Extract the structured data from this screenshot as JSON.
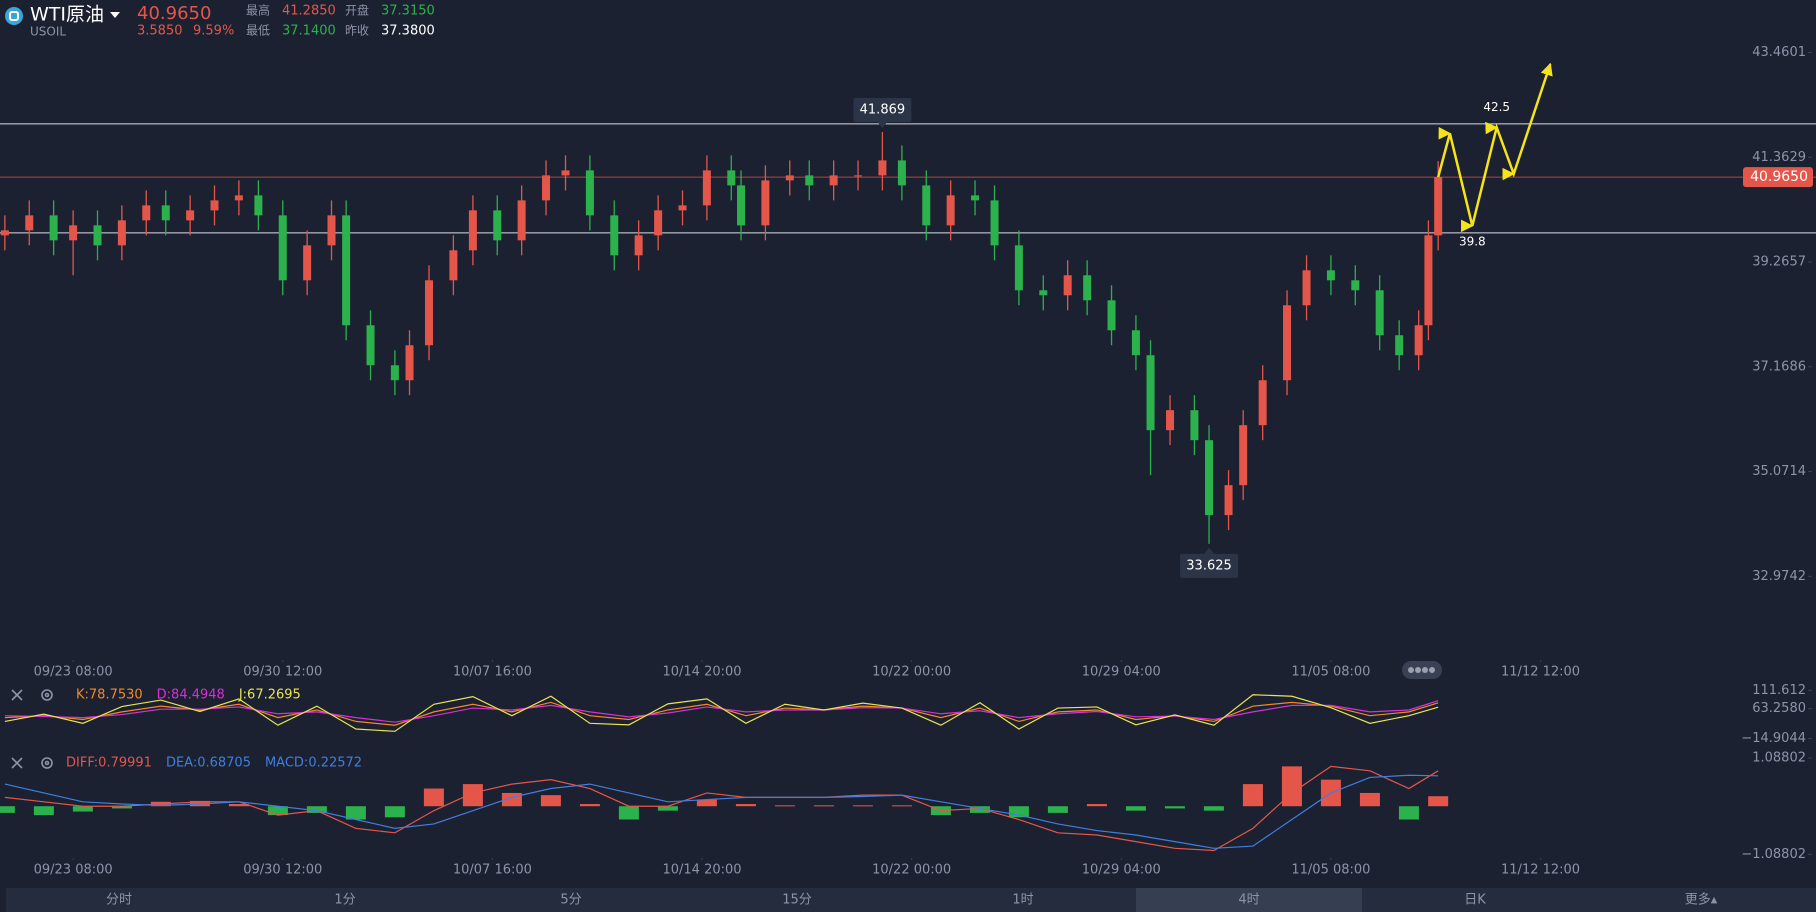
{
  "header": {
    "name": "WTI原油",
    "symbol": "USOIL",
    "price": "40.9650",
    "change": "3.5850",
    "change_pct": "9.59%",
    "high_label": "最高",
    "high": "41.2850",
    "open_label": "开盘",
    "open": "37.3150",
    "low_label": "最低",
    "low": "37.1400",
    "prev_label": "昨收",
    "prev": "37.3800"
  },
  "tabs": [
    "分时",
    "1分",
    "5分",
    "15分",
    "1时",
    "4时",
    "日K",
    "更多▴"
  ],
  "active_tab": 5,
  "chart_data": [
    {
      "type": "candlestick",
      "colors": {
        "up": "#e5564a",
        "down": "#2bb24c"
      },
      "xlim": [
        -15,
        357.5
      ],
      "ylim": [
        31.42,
        43.81
      ],
      "xticks": [
        {
          "value": 0,
          "label": "09/23 08:00"
        },
        {
          "value": 43,
          "label": "09/30 12:00"
        },
        {
          "value": 86,
          "label": "10/07 16:00"
        },
        {
          "value": 129,
          "label": "10/14 20:00"
        },
        {
          "value": 172,
          "label": "10/22 00:00"
        },
        {
          "value": 215,
          "label": "10/29 04:00"
        },
        {
          "value": 258,
          "label": "11/05 08:00"
        },
        {
          "value": 301,
          "label": "11/12 12:00"
        }
      ],
      "yticks": [
        43.4601,
        41.3629,
        39.2657,
        37.1686,
        35.0714,
        32.9742
      ],
      "x": [
        -14,
        -9,
        -4,
        0,
        5,
        10,
        15,
        19,
        24,
        29,
        34,
        38,
        43,
        48,
        53,
        56,
        61,
        66,
        69,
        73,
        78,
        82,
        87,
        92,
        97,
        101,
        106,
        111,
        116,
        120,
        125,
        130,
        135,
        137,
        142,
        147,
        151,
        156,
        161,
        166,
        170,
        175,
        180,
        185,
        189,
        194,
        199,
        204,
        208,
        213,
        218,
        221,
        225,
        230,
        233,
        237,
        240,
        244,
        249,
        253,
        258,
        263,
        268,
        272,
        276,
        278,
        280
      ],
      "open": [
        39.8,
        39.9,
        40.2,
        39.7,
        40.0,
        39.6,
        40.1,
        40.4,
        40.1,
        40.3,
        40.5,
        40.6,
        40.2,
        38.9,
        39.6,
        40.2,
        38.0,
        37.2,
        36.9,
        37.6,
        38.9,
        39.5,
        40.3,
        39.7,
        40.5,
        41.0,
        41.1,
        40.2,
        39.4,
        39.8,
        40.3,
        40.4,
        41.1,
        40.8,
        40.0,
        40.9,
        41.0,
        40.8,
        41.0,
        41.0,
        41.3,
        40.8,
        40.0,
        40.6,
        40.5,
        39.6,
        38.7,
        38.6,
        39.0,
        38.5,
        37.9,
        37.4,
        35.9,
        36.3,
        35.7,
        34.2,
        34.8,
        36.0,
        36.9,
        38.4,
        39.1,
        38.9,
        38.7,
        37.8,
        37.4,
        38.0,
        39.8
      ],
      "high": [
        40.2,
        40.5,
        40.5,
        40.3,
        40.3,
        40.4,
        40.7,
        40.7,
        40.6,
        40.8,
        40.9,
        40.9,
        40.5,
        39.9,
        40.5,
        40.5,
        38.3,
        37.5,
        37.9,
        39.2,
        39.8,
        40.6,
        40.6,
        40.8,
        41.3,
        41.4,
        41.4,
        40.5,
        40.1,
        40.6,
        40.7,
        41.4,
        41.4,
        41.1,
        41.2,
        41.3,
        41.3,
        41.3,
        41.3,
        41.869,
        41.6,
        41.1,
        40.9,
        40.9,
        40.8,
        39.9,
        39.0,
        39.3,
        39.3,
        38.8,
        38.2,
        37.7,
        36.6,
        36.6,
        36.0,
        35.1,
        36.3,
        37.2,
        38.7,
        39.4,
        39.4,
        39.2,
        39.0,
        38.1,
        38.3,
        40.1,
        41.285
      ],
      "low": [
        39.5,
        39.6,
        39.4,
        39.0,
        39.3,
        39.3,
        39.8,
        39.8,
        39.8,
        40.0,
        40.2,
        39.9,
        38.6,
        38.6,
        39.3,
        37.7,
        36.9,
        36.6,
        36.6,
        37.3,
        38.6,
        39.2,
        39.4,
        39.4,
        40.2,
        40.7,
        39.9,
        39.1,
        39.1,
        39.5,
        40.0,
        40.1,
        40.5,
        39.7,
        39.7,
        40.6,
        40.5,
        40.5,
        40.7,
        40.7,
        40.5,
        39.7,
        39.7,
        40.2,
        39.3,
        38.4,
        38.3,
        38.3,
        38.2,
        37.6,
        37.1,
        35.0,
        35.6,
        35.4,
        33.625,
        33.9,
        34.5,
        35.7,
        36.6,
        38.1,
        38.6,
        38.4,
        37.5,
        37.1,
        37.1,
        37.7,
        39.5
      ],
      "close": [
        39.9,
        40.2,
        39.7,
        40.0,
        39.6,
        40.1,
        40.4,
        40.1,
        40.3,
        40.5,
        40.6,
        40.2,
        38.9,
        39.6,
        40.2,
        38.0,
        37.2,
        36.9,
        37.6,
        38.9,
        39.5,
        40.3,
        39.7,
        40.5,
        41.0,
        41.1,
        40.2,
        39.4,
        39.8,
        40.3,
        40.4,
        41.1,
        40.8,
        40.0,
        40.9,
        41.0,
        40.8,
        41.0,
        41.0,
        41.3,
        40.8,
        40.0,
        40.6,
        40.5,
        39.6,
        38.7,
        38.6,
        39.0,
        38.5,
        37.9,
        37.4,
        35.9,
        36.3,
        35.7,
        34.2,
        34.8,
        36.0,
        36.9,
        38.4,
        39.1,
        38.9,
        38.7,
        37.8,
        37.4,
        38.0,
        39.8,
        40.965
      ],
      "levels": [
        42.03,
        39.85
      ],
      "last_price": {
        "value": 40.965,
        "label": "40.9650"
      },
      "high_label": 41.869,
      "low_label": 33.625,
      "projection": {
        "color": "#f5e41c",
        "x": [
          280,
          282.4,
          287,
          292,
          295.5,
          303
        ],
        "y": [
          40.965,
          41.84,
          39.99,
          41.96,
          41.03,
          43.23
        ],
        "labels": [
          "42.5",
          "39.8"
        ]
      }
    },
    {
      "type": "line",
      "xlim": [
        -15,
        357.5
      ],
      "ylim": [
        -45,
        136
      ],
      "yticks": [
        111.612,
        {
          "value": 63.258,
          "label": "63.2580"
        },
        {
          "value": -14.9044,
          "label": "−14.9044"
        }
      ],
      "x": [
        -14,
        -6,
        2,
        10,
        18,
        26,
        34,
        42,
        50,
        58,
        66,
        74,
        82,
        90,
        98,
        106,
        114,
        122,
        130,
        138,
        146,
        154,
        162,
        170,
        178,
        186,
        194,
        202,
        210,
        218,
        226,
        234,
        242,
        250,
        258,
        266,
        274,
        280
      ],
      "series": [
        {
          "name": "K:78.7530",
          "color": "#f0892a",
          "values": [
            40,
            45,
            35,
            55,
            70,
            60,
            75,
            40,
            60,
            30,
            20,
            55,
            75,
            55,
            80,
            45,
            35,
            60,
            75,
            45,
            65,
            60,
            70,
            65,
            40,
            65,
            30,
            55,
            60,
            35,
            45,
            30,
            70,
            80,
            70,
            45,
            55,
            78.753
          ]
        },
        {
          "name": "D:84.4948",
          "color": "#d630d6",
          "values": [
            45,
            43,
            40,
            48,
            62,
            62,
            68,
            50,
            55,
            40,
            28,
            45,
            65,
            60,
            72,
            55,
            42,
            52,
            68,
            55,
            60,
            60,
            66,
            65,
            50,
            58,
            40,
            50,
            56,
            42,
            44,
            35,
            55,
            72,
            72,
            55,
            60,
            84.4948
          ]
        },
        {
          "name": "J:67.2695",
          "color": "#e8e455",
          "values": [
            30,
            49,
            25,
            69,
            86,
            56,
            89,
            20,
            70,
            10,
            4,
            75,
            95,
            45,
            96,
            25,
            21,
            76,
            89,
            25,
            75,
            60,
            78,
            65,
            20,
            79,
            10,
            65,
            68,
            21,
            47,
            20,
            100,
            96,
            66,
            25,
            45,
            67.2695
          ]
        }
      ]
    },
    {
      "type": "macd",
      "xlim": [
        -15,
        357.5
      ],
      "ylim": [
        -1.35,
        1.27
      ],
      "xticks": [
        {
          "value": 0,
          "label": "09/23 08:00"
        },
        {
          "value": 43,
          "label": "09/30 12:00"
        },
        {
          "value": 86,
          "label": "10/07 16:00"
        },
        {
          "value": 129,
          "label": "10/14 20:00"
        },
        {
          "value": 172,
          "label": "10/22 00:00"
        },
        {
          "value": 215,
          "label": "10/29 04:00"
        },
        {
          "value": 258,
          "label": "11/05 08:00"
        },
        {
          "value": 301,
          "label": "11/12 12:00"
        }
      ],
      "yticks": [
        1.08802,
        {
          "value": -1.08802,
          "label": "−1.08802"
        }
      ],
      "bar_colors": {
        "up": "#e5564a",
        "down": "#2bb24c"
      },
      "x": [
        -14,
        -6,
        2,
        10,
        18,
        26,
        34,
        42,
        50,
        58,
        66,
        74,
        82,
        90,
        98,
        106,
        114,
        122,
        130,
        138,
        146,
        154,
        162,
        170,
        178,
        186,
        194,
        202,
        210,
        218,
        226,
        234,
        242,
        250,
        258,
        266,
        274,
        280
      ],
      "series": [
        {
          "name": "DIFF:0.79991",
          "color": "#e5564a",
          "values": [
            0.2,
            0.1,
            0.0,
            0.0,
            0.05,
            0.1,
            0.1,
            -0.2,
            -0.1,
            -0.5,
            -0.6,
            -0.1,
            0.3,
            0.5,
            0.6,
            0.4,
            0.0,
            0.0,
            0.3,
            0.2,
            0.2,
            0.2,
            0.25,
            0.25,
            -0.1,
            -0.05,
            -0.3,
            -0.6,
            -0.65,
            -0.8,
            -0.95,
            -1.0,
            -0.5,
            0.3,
            0.9,
            0.8,
            0.4,
            0.79991
          ]
        },
        {
          "name": "DEA:0.68705",
          "color": "#3f7fe0",
          "values": [
            0.5,
            0.3,
            0.1,
            0.05,
            0.02,
            0.05,
            0.1,
            0.0,
            -0.1,
            -0.3,
            -0.5,
            -0.4,
            -0.1,
            0.2,
            0.4,
            0.5,
            0.3,
            0.1,
            0.15,
            0.2,
            0.2,
            0.2,
            0.22,
            0.25,
            0.1,
            -0.05,
            -0.2,
            -0.4,
            -0.55,
            -0.65,
            -0.8,
            -0.95,
            -0.9,
            -0.3,
            0.3,
            0.65,
            0.7,
            0.68705
          ]
        },
        {
          "name": "MACD:0.22572",
          "color": "#3f7fe0",
          "kind": "bar",
          "values": [
            -0.15,
            -0.2,
            -0.12,
            -0.05,
            0.1,
            0.12,
            0.05,
            -0.2,
            -0.15,
            -0.3,
            -0.25,
            0.4,
            0.5,
            0.3,
            0.25,
            0.05,
            -0.3,
            -0.1,
            0.15,
            0.05,
            0.02,
            0.02,
            0.02,
            0.02,
            -0.2,
            -0.15,
            -0.25,
            -0.15,
            0.05,
            -0.1,
            -0.05,
            -0.1,
            0.5,
            0.9,
            0.6,
            0.3,
            -0.3,
            0.22572
          ]
        }
      ]
    }
  ]
}
